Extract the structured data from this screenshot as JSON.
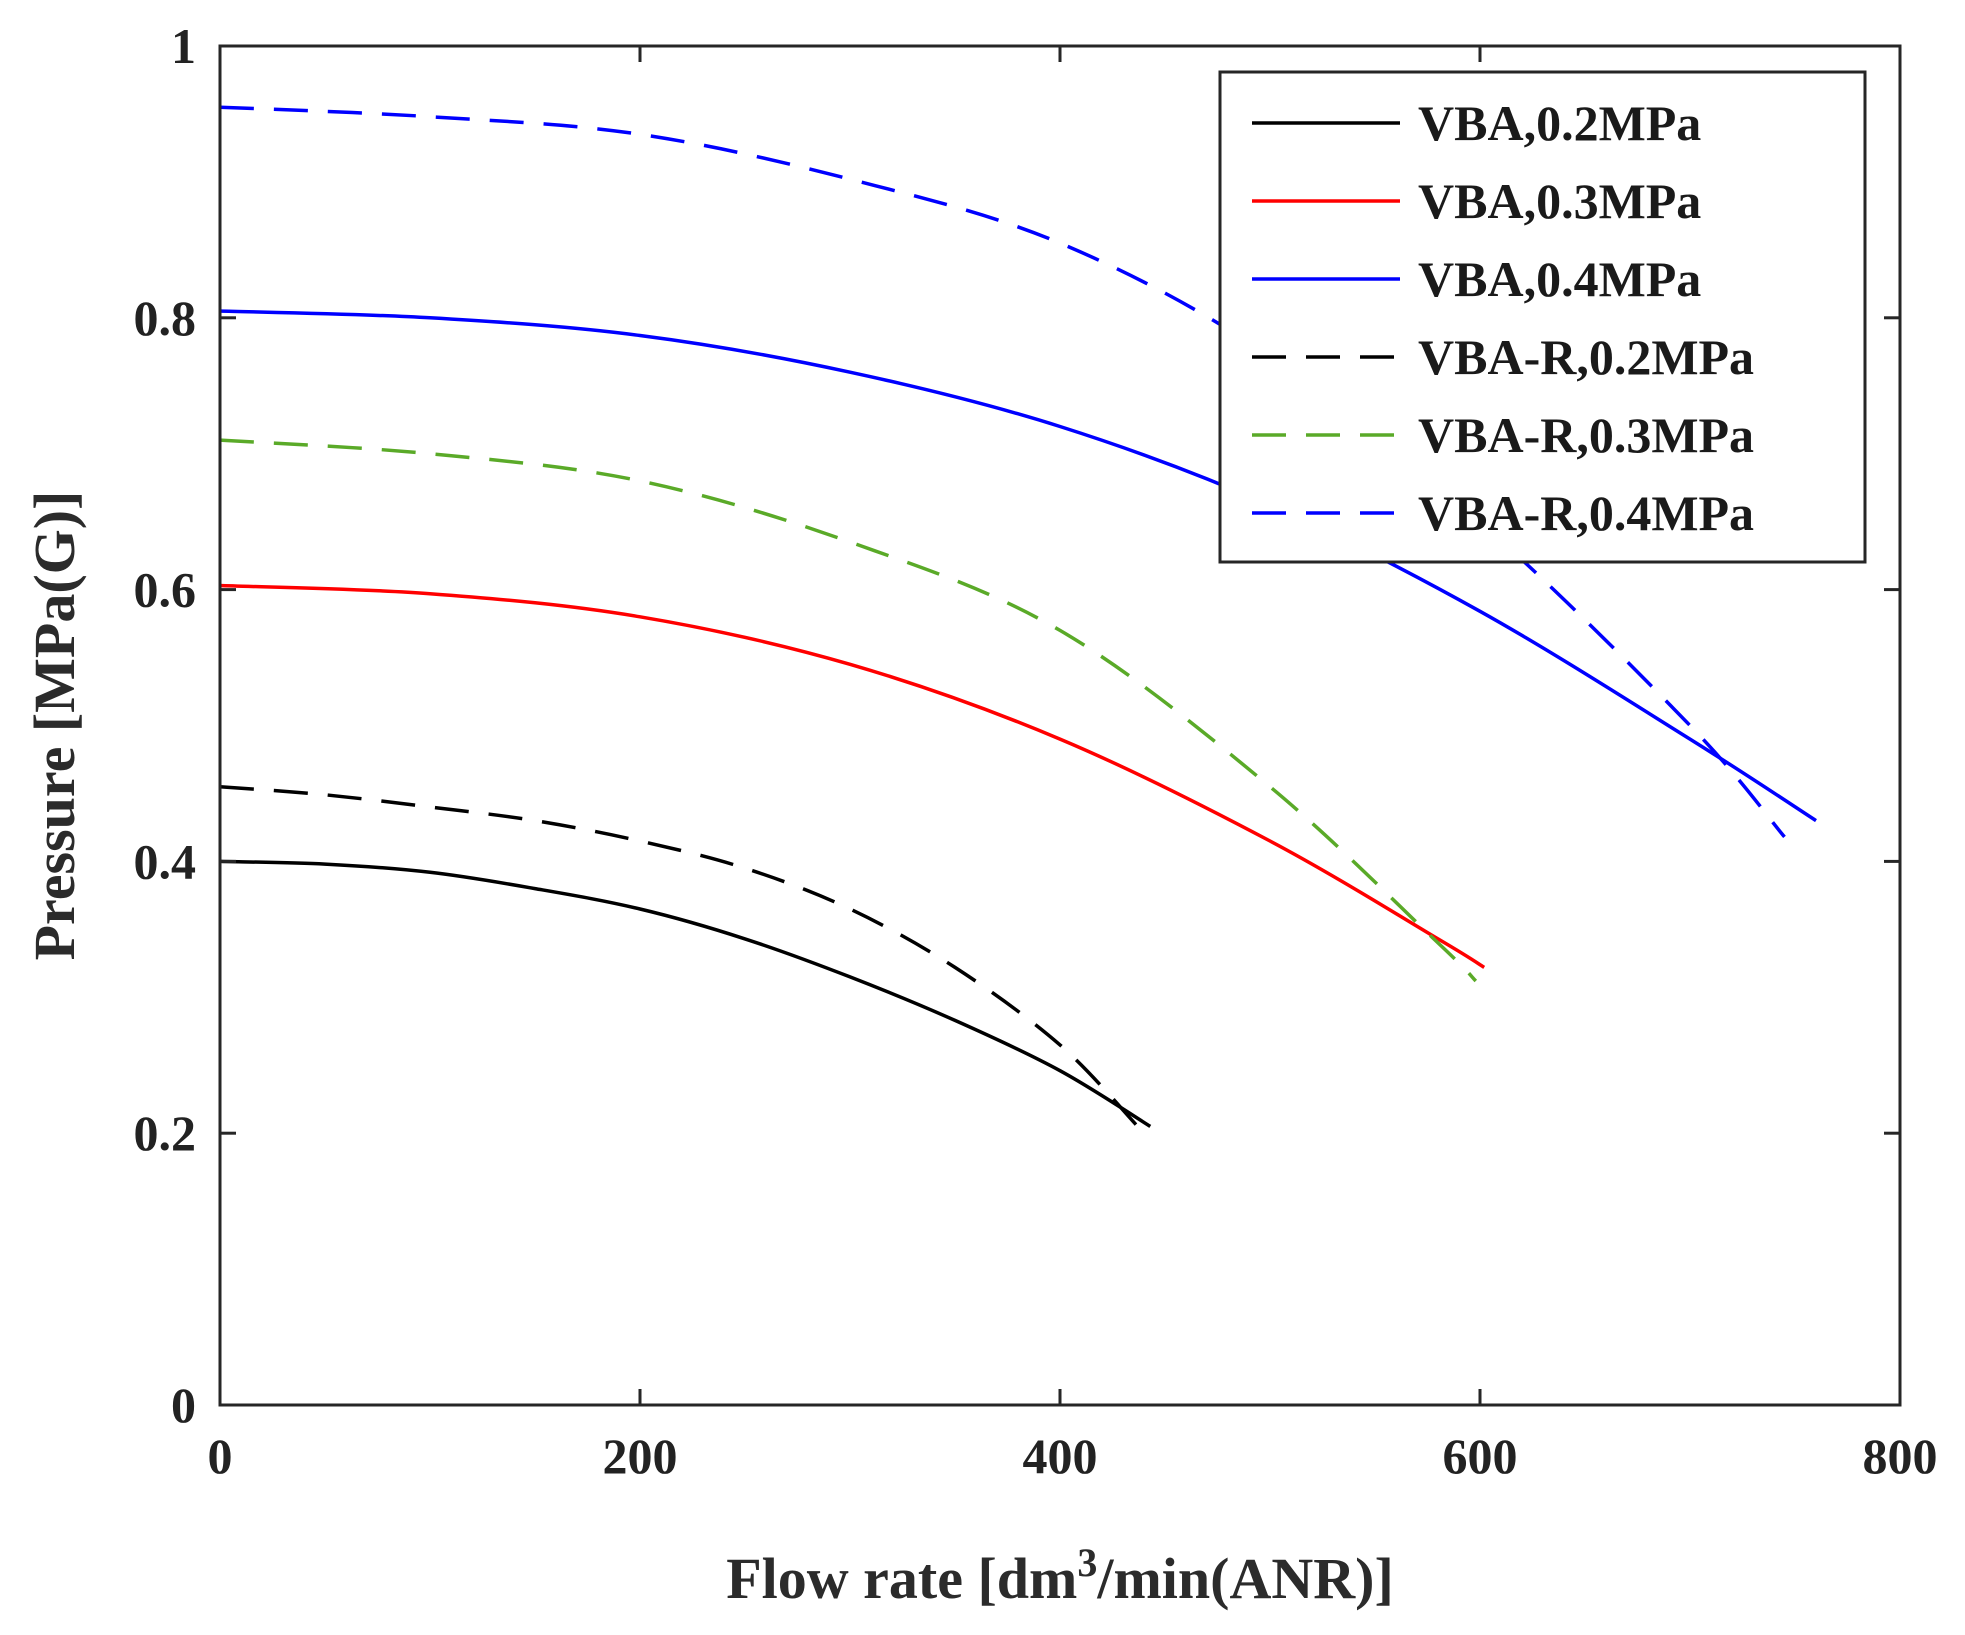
{
  "chart_data": {
    "type": "line",
    "xlabel": "Flow rate [dm",
    "xlabel_sup": "3",
    "xlabel_tail": "/min(ANR)]",
    "ylabel": "Pressure [MPa(G)]",
    "xlim": [
      0,
      800
    ],
    "ylim": [
      0,
      1
    ],
    "xticks": [
      0,
      200,
      400,
      600,
      800
    ],
    "xtick_labels": [
      "0",
      "200",
      "400",
      "600",
      "800"
    ],
    "yticks": [
      0,
      0.2,
      0.4,
      0.6,
      0.8,
      1
    ],
    "ytick_labels": [
      "0",
      "0.2",
      "0.4",
      "0.6",
      "0.8",
      "1"
    ],
    "grid": false,
    "legend_position": "top-right",
    "series": [
      {
        "name": "VBA,0.2MPa",
        "color": "#000000",
        "dash": "solid",
        "x": [
          0,
          50,
          100,
          150,
          200,
          250,
          300,
          350,
          400,
          443
        ],
        "y": [
          0.4,
          0.398,
          0.392,
          0.38,
          0.365,
          0.343,
          0.315,
          0.283,
          0.246,
          0.205
        ]
      },
      {
        "name": "VBA,0.3MPa",
        "color": "#ff0000",
        "dash": "solid",
        "x": [
          0,
          100,
          200,
          300,
          400,
          500,
          580,
          602
        ],
        "y": [
          0.603,
          0.597,
          0.58,
          0.545,
          0.49,
          0.415,
          0.343,
          0.322
        ]
      },
      {
        "name": "VBA,0.4MPa",
        "color": "#0000ff",
        "dash": "solid",
        "x": [
          0,
          100,
          200,
          300,
          400,
          500,
          600,
          700,
          760
        ],
        "y": [
          0.805,
          0.8,
          0.787,
          0.76,
          0.72,
          0.662,
          0.584,
          0.49,
          0.43
        ]
      },
      {
        "name": "VBA-R,0.2MPa",
        "color": "#000000",
        "dash": "dashed",
        "x": [
          0,
          50,
          100,
          150,
          200,
          250,
          300,
          350,
          400,
          437
        ],
        "y": [
          0.455,
          0.449,
          0.44,
          0.43,
          0.415,
          0.395,
          0.365,
          0.322,
          0.265,
          0.205
        ]
      },
      {
        "name": "VBA-R,0.3MPa",
        "color": "#5aaa28",
        "dash": "dashed",
        "x": [
          0,
          100,
          200,
          300,
          400,
          500,
          580,
          598
        ],
        "y": [
          0.71,
          0.7,
          0.68,
          0.635,
          0.57,
          0.455,
          0.34,
          0.312
        ]
      },
      {
        "name": "VBA-R,0.4MPa",
        "color": "#0000ff",
        "dash": "dashed",
        "x": [
          0,
          100,
          200,
          300,
          400,
          500,
          600,
          700,
          745
        ],
        "y": [
          0.955,
          0.948,
          0.935,
          0.902,
          0.855,
          0.772,
          0.65,
          0.5,
          0.418
        ]
      }
    ]
  }
}
